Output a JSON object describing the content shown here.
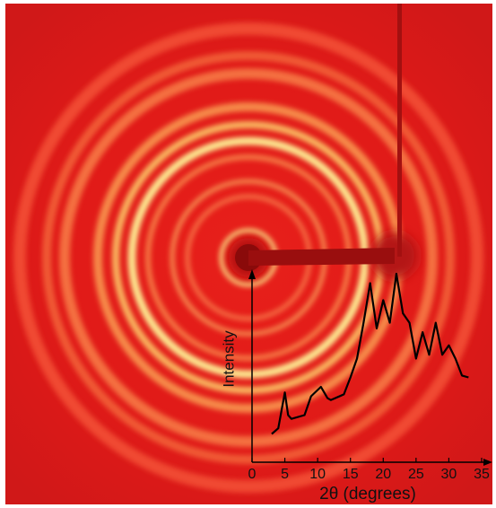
{
  "chart_data": {
    "type": "line",
    "x_label": "2θ (degrees)",
    "y_label": "Intensity",
    "x": [
      3,
      4,
      5,
      5.5,
      6,
      8,
      9,
      10.5,
      11.5,
      12,
      14,
      15,
      16,
      17,
      18,
      19,
      20,
      21,
      22,
      23,
      24,
      25,
      26,
      27,
      28,
      29,
      30,
      31,
      32,
      33
    ],
    "values": [
      1.5,
      1.8,
      3.7,
      2.5,
      2.3,
      2.5,
      3.5,
      4.0,
      3.4,
      3.3,
      3.6,
      4.5,
      5.5,
      7.4,
      9.5,
      7.1,
      8.6,
      7.4,
      10.0,
      7.9,
      7.4,
      5.5,
      6.9,
      5.7,
      7.4,
      5.7,
      6.2,
      5.5,
      4.6,
      4.5
    ],
    "color": "#000000",
    "xlim": [
      0,
      35
    ],
    "xticks": [
      0,
      5,
      10,
      15,
      20,
      25,
      30,
      35
    ],
    "ylim": [
      0,
      10
    ]
  }
}
